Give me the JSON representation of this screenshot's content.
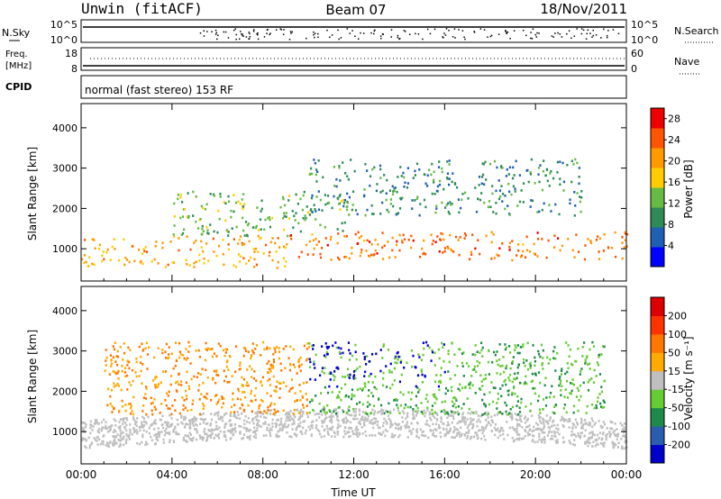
{
  "header": {
    "title": "Unwin (fitACF)",
    "beam": "Beam 07",
    "date": "18/Nov/2011"
  },
  "strip_panels": {
    "nsky": {
      "left_label": "N.Sky",
      "left_ticks": [
        "10^5",
        "10^0"
      ],
      "right_ticks": [
        "10^5",
        "10^0"
      ],
      "right_label": "N.Search"
    },
    "freq": {
      "left_label_1": "Freq.",
      "left_label_2": "[MHz]",
      "left_ticks": [
        "18",
        "8"
      ],
      "right_ticks": [
        "60",
        "0"
      ],
      "right_label": "Nave"
    },
    "cpid": {
      "left_label": "CPID",
      "mode_text": "normal (fast stereo) 153 RF"
    }
  },
  "chart_data": [
    {
      "type": "heatmap",
      "name": "power",
      "ylabel": "Slant Range [km]",
      "y_ticks": [
        1000,
        2000,
        3000,
        4000
      ],
      "ylim": [
        200,
        4600
      ],
      "x_ticks": [
        "00:00",
        "04:00",
        "08:00",
        "12:00",
        "16:00",
        "20:00",
        "00:00"
      ],
      "xlim_hours": [
        0,
        24
      ],
      "colorbar": {
        "label": "Power [dB]",
        "ticks": [
          4,
          8,
          12,
          16,
          20,
          24,
          28
        ],
        "range": [
          0,
          30
        ],
        "colors": [
          "#0000ff",
          "#1f5fb4",
          "#2e8b57",
          "#66bb44",
          "#ffcc00",
          "#ff9900",
          "#ff5500",
          "#ee0000"
        ]
      },
      "echo_bands": [
        {
          "t0": 0,
          "t1": 9,
          "r0": 500,
          "r1": 1300,
          "level": 20
        },
        {
          "t0": 4,
          "t1": 12,
          "r0": 1300,
          "r1": 2400,
          "level": 12
        },
        {
          "t0": 10,
          "t1": 22,
          "r0": 1800,
          "r1": 3200,
          "level": 8
        },
        {
          "t0": 9,
          "t1": 24,
          "r0": 700,
          "r1": 1400,
          "level": 24
        }
      ]
    },
    {
      "type": "heatmap",
      "name": "velocity",
      "ylabel": "Slant Range [km]",
      "y_ticks": [
        1000,
        2000,
        3000,
        4000
      ],
      "ylim": [
        200,
        4600
      ],
      "x_ticks": [
        "00:00",
        "04:00",
        "08:00",
        "12:00",
        "16:00",
        "20:00",
        "00:00"
      ],
      "xlabel": "Time UT",
      "xlim_hours": [
        0,
        24
      ],
      "colorbar": {
        "label": "Velocity [m s⁻¹]",
        "ticks": [
          "200",
          "100",
          "50",
          "15",
          "-15",
          "-50",
          "-100",
          "-200"
        ],
        "colors": [
          "#0000cc",
          "#2a5db0",
          "#1e8a4a",
          "#66cc33",
          "#bfbfbf",
          "#ffaa00",
          "#ff7700",
          "#ff3300",
          "#dd0000"
        ]
      },
      "ground_scatter_color": "#bfbfbf"
    }
  ]
}
